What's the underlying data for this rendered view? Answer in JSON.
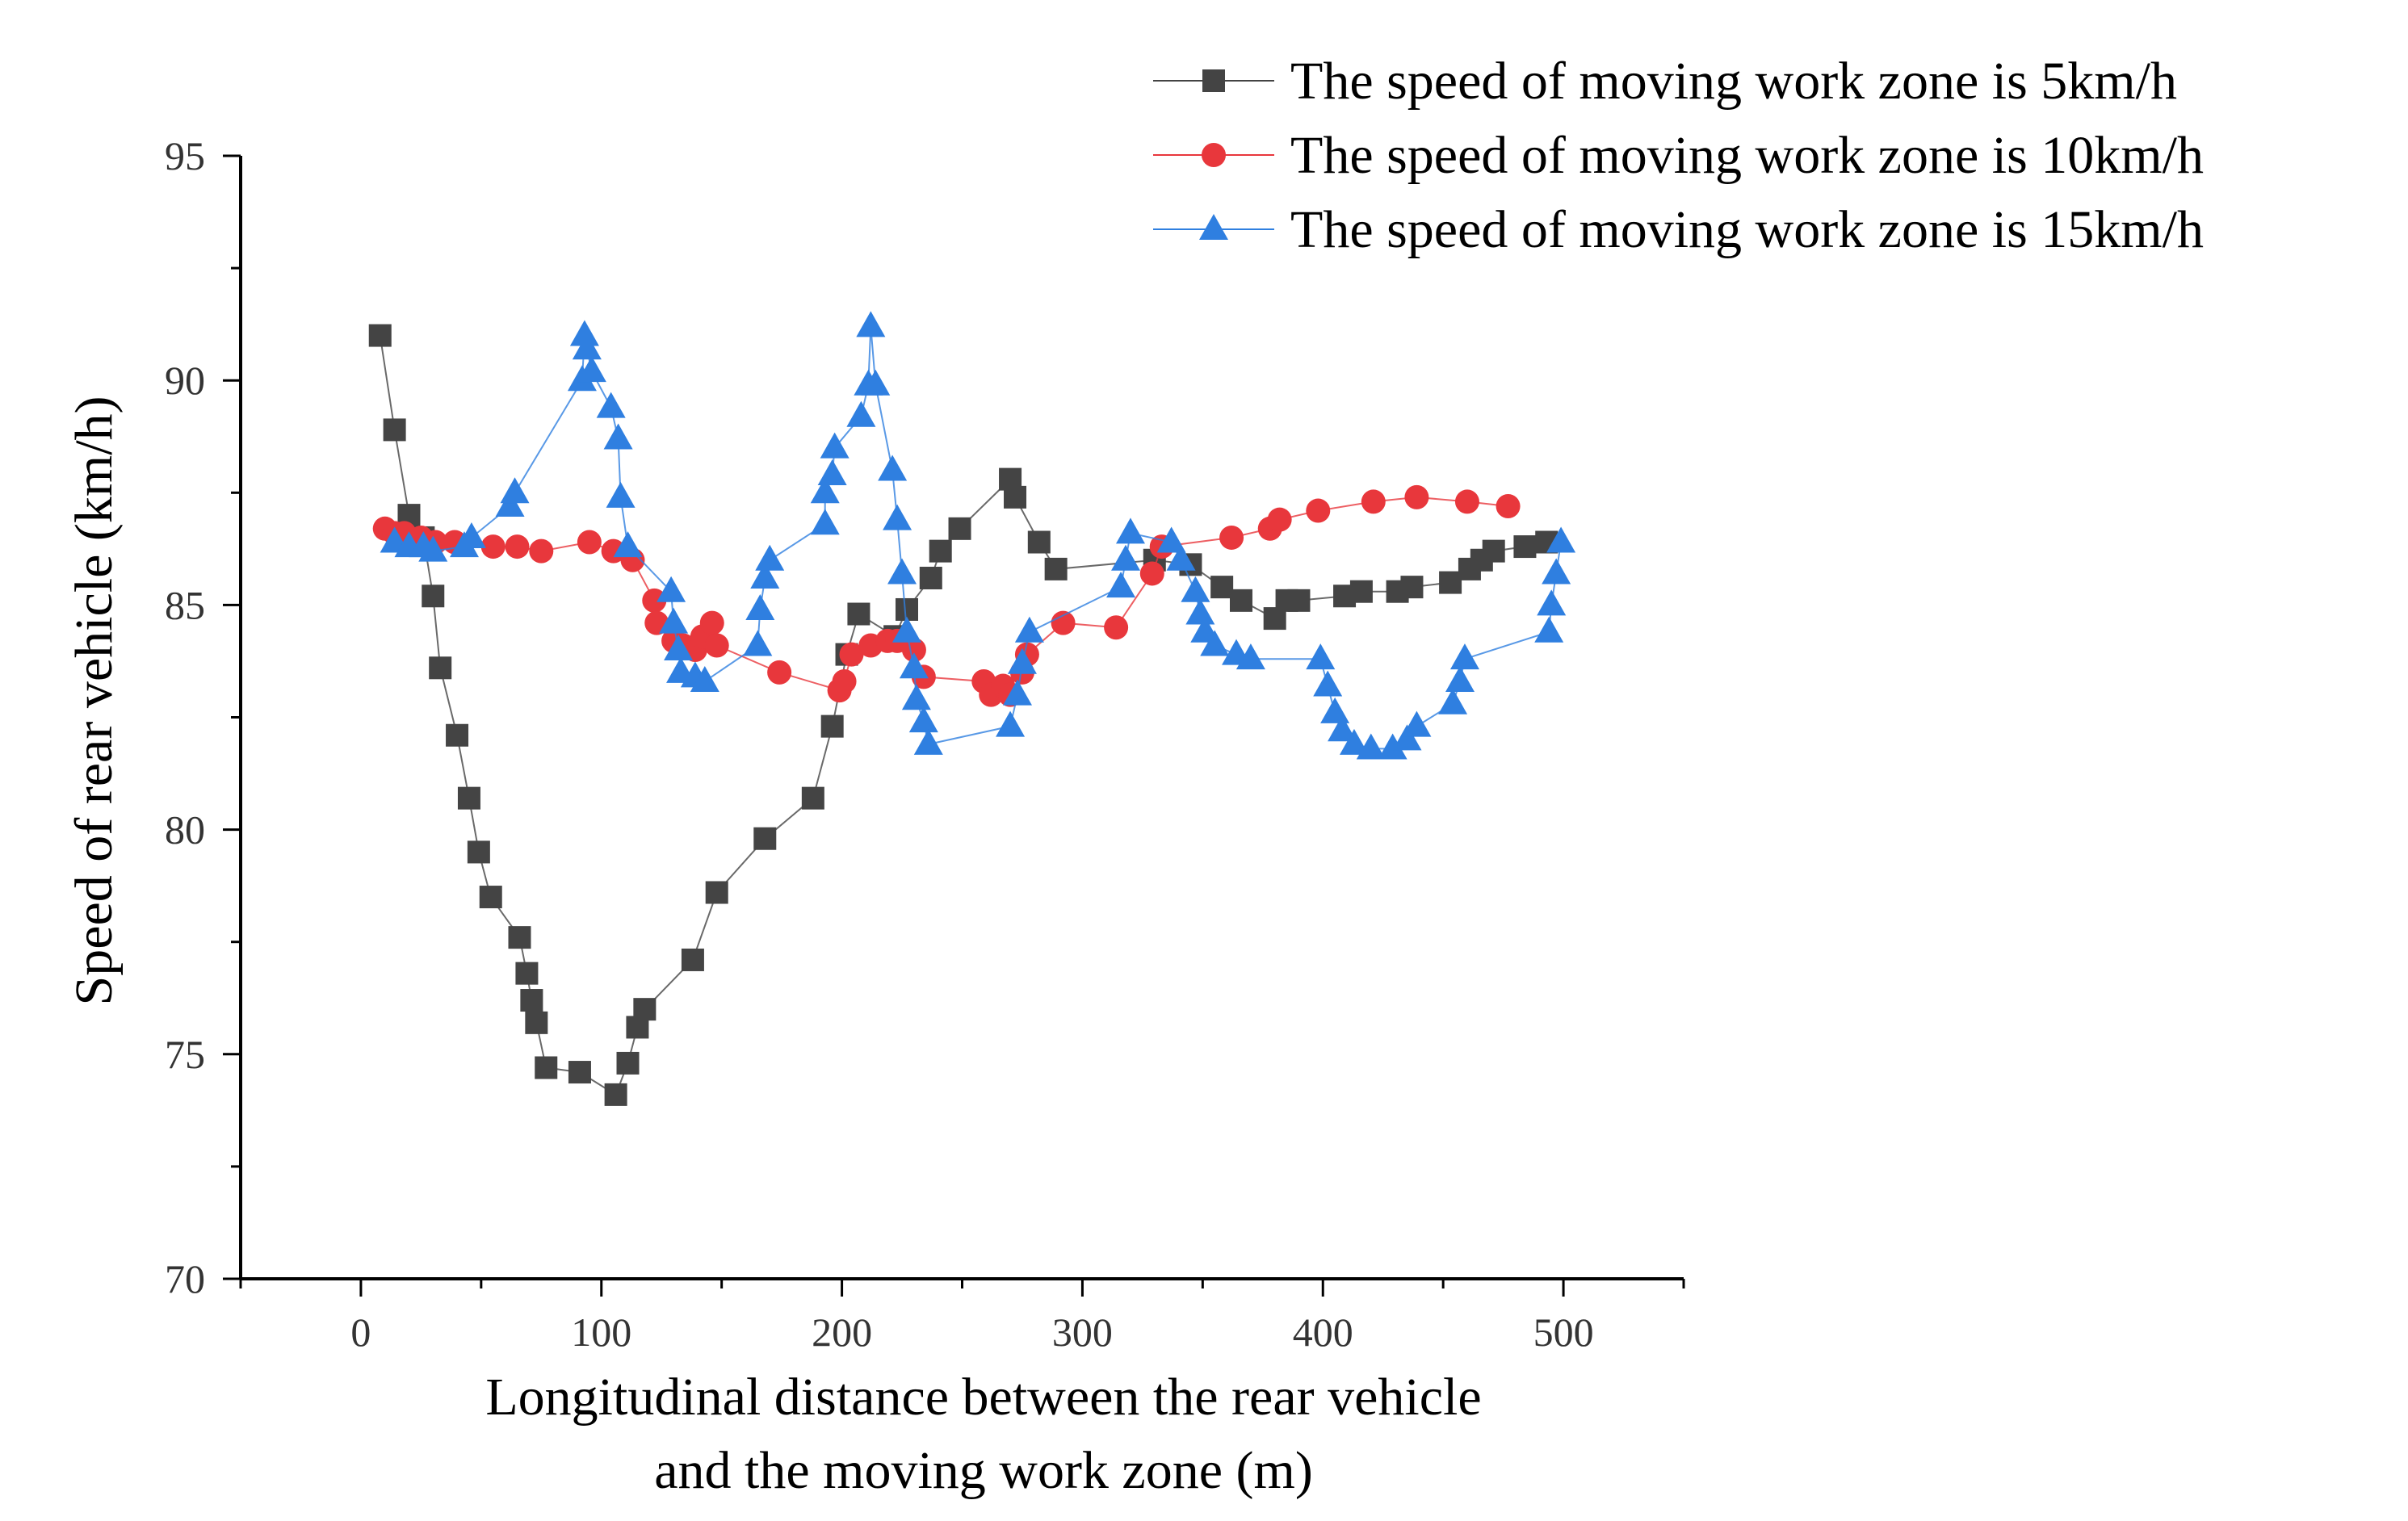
{
  "chart_data": {
    "type": "line",
    "title": "",
    "xlabel_lines": [
      "Longitudinal distance between the rear vehicle",
      "and the moving work zone (m)"
    ],
    "ylabel": "Speed of rear vehicle (km/h)",
    "xlim": [
      -50,
      550
    ],
    "ylim": [
      70,
      95
    ],
    "xticks": [
      0,
      100,
      200,
      300,
      400,
      500
    ],
    "yticks": [
      70,
      75,
      80,
      85,
      90,
      95
    ],
    "legend_position": "top-right",
    "series": [
      {
        "name": "The speed of moving work zone is 5km/h",
        "color": "#444444",
        "marker": "square",
        "points": [
          [
            8,
            91.0
          ],
          [
            14,
            88.9
          ],
          [
            20,
            87.0
          ],
          [
            26,
            86.5
          ],
          [
            30,
            85.2
          ],
          [
            33,
            83.6
          ],
          [
            40,
            82.1
          ],
          [
            45,
            80.7
          ],
          [
            49,
            79.5
          ],
          [
            54,
            78.5
          ],
          [
            66,
            77.6
          ],
          [
            69,
            76.8
          ],
          [
            71,
            76.2
          ],
          [
            73,
            75.7
          ],
          [
            77,
            74.7
          ],
          [
            91,
            74.6
          ],
          [
            106,
            74.1
          ],
          [
            111,
            74.8
          ],
          [
            115,
            75.6
          ],
          [
            118,
            76.0
          ],
          [
            138,
            77.1
          ],
          [
            148,
            78.6
          ],
          [
            168,
            79.8
          ],
          [
            188,
            80.7
          ],
          [
            196,
            82.3
          ],
          [
            202,
            83.9
          ],
          [
            207,
            84.8
          ],
          [
            222,
            84.3
          ],
          [
            227,
            84.9
          ],
          [
            237,
            85.6
          ],
          [
            241,
            86.2
          ],
          [
            249,
            86.7
          ],
          [
            270,
            87.8
          ],
          [
            272,
            87.4
          ],
          [
            282,
            86.4
          ],
          [
            289,
            85.8
          ],
          [
            330,
            86.0
          ],
          [
            345,
            85.9
          ],
          [
            358,
            85.4
          ],
          [
            366,
            85.1
          ],
          [
            380,
            84.7
          ],
          [
            385,
            85.1
          ],
          [
            390,
            85.1
          ],
          [
            409,
            85.2
          ],
          [
            416,
            85.3
          ],
          [
            431,
            85.3
          ],
          [
            437,
            85.4
          ],
          [
            453,
            85.5
          ],
          [
            461,
            85.8
          ],
          [
            466,
            86.0
          ],
          [
            471,
            86.2
          ],
          [
            484,
            86.3
          ],
          [
            493,
            86.4
          ]
        ]
      },
      {
        "name": "The speed of moving work zone is 10km/h",
        "color": "#e8373c",
        "marker": "circle",
        "points": [
          [
            10,
            86.7
          ],
          [
            14,
            86.6
          ],
          [
            18,
            86.6
          ],
          [
            25,
            86.5
          ],
          [
            31,
            86.4
          ],
          [
            39,
            86.4
          ],
          [
            55,
            86.3
          ],
          [
            65,
            86.3
          ],
          [
            75,
            86.2
          ],
          [
            95,
            86.4
          ],
          [
            105,
            86.2
          ],
          [
            113,
            86.0
          ],
          [
            122,
            85.1
          ],
          [
            123,
            84.6
          ],
          [
            130,
            84.2
          ],
          [
            134,
            84.1
          ],
          [
            139,
            84.0
          ],
          [
            142,
            84.3
          ],
          [
            146,
            84.6
          ],
          [
            148,
            84.1
          ],
          [
            174,
            83.5
          ],
          [
            199,
            83.1
          ],
          [
            201,
            83.3
          ],
          [
            204,
            83.9
          ],
          [
            212,
            84.1
          ],
          [
            219,
            84.2
          ],
          [
            223,
            84.2
          ],
          [
            230,
            84.0
          ],
          [
            234,
            83.4
          ],
          [
            259,
            83.3
          ],
          [
            262,
            83.0
          ],
          [
            267,
            83.2
          ],
          [
            270,
            83.0
          ],
          [
            275,
            83.5
          ],
          [
            277,
            83.9
          ],
          [
            292,
            84.6
          ],
          [
            314,
            84.5
          ],
          [
            329,
            85.7
          ],
          [
            333,
            86.3
          ],
          [
            362,
            86.5
          ],
          [
            378,
            86.7
          ],
          [
            382,
            86.9
          ],
          [
            398,
            87.1
          ],
          [
            421,
            87.3
          ],
          [
            439,
            87.4
          ],
          [
            460,
            87.3
          ],
          [
            477,
            87.2
          ]
        ]
      },
      {
        "name": "The speed of moving work zone is 15km/h",
        "color": "#2f7fe0",
        "marker": "triangle",
        "points": [
          [
            14,
            86.4
          ],
          [
            20,
            86.3
          ],
          [
            26,
            86.3
          ],
          [
            30,
            86.2
          ],
          [
            43,
            86.3
          ],
          [
            46,
            86.5
          ],
          [
            62,
            87.2
          ],
          [
            64,
            87.5
          ],
          [
            92,
            90.0
          ],
          [
            93,
            91.0
          ],
          [
            94,
            90.7
          ],
          [
            96,
            90.2
          ],
          [
            104,
            89.4
          ],
          [
            107,
            88.7
          ],
          [
            108,
            87.4
          ],
          [
            111,
            86.3
          ],
          [
            129,
            85.3
          ],
          [
            130,
            84.6
          ],
          [
            132,
            84.0
          ],
          [
            133,
            83.5
          ],
          [
            139,
            83.4
          ],
          [
            143,
            83.3
          ],
          [
            165,
            84.1
          ],
          [
            166,
            84.9
          ],
          [
            168,
            85.6
          ],
          [
            170,
            86.0
          ],
          [
            193,
            86.8
          ],
          [
            193,
            87.5
          ],
          [
            196,
            87.9
          ],
          [
            197,
            88.5
          ],
          [
            208,
            89.2
          ],
          [
            211,
            89.9
          ],
          [
            212,
            91.2
          ],
          [
            214,
            89.9
          ],
          [
            221,
            88.0
          ],
          [
            223,
            86.9
          ],
          [
            225,
            85.7
          ],
          [
            227,
            84.4
          ],
          [
            230,
            83.6
          ],
          [
            231,
            82.9
          ],
          [
            234,
            82.4
          ],
          [
            236,
            81.9
          ],
          [
            270,
            82.3
          ],
          [
            273,
            83.0
          ],
          [
            275,
            83.7
          ],
          [
            278,
            84.4
          ],
          [
            316,
            85.4
          ],
          [
            318,
            86.0
          ],
          [
            320,
            86.6
          ],
          [
            337,
            86.4
          ],
          [
            341,
            86.0
          ],
          [
            347,
            85.3
          ],
          [
            349,
            84.8
          ],
          [
            351,
            84.4
          ],
          [
            355,
            84.1
          ],
          [
            364,
            83.9
          ],
          [
            370,
            83.8
          ],
          [
            399,
            83.8
          ],
          [
            402,
            83.2
          ],
          [
            405,
            82.6
          ],
          [
            408,
            82.2
          ],
          [
            413,
            81.9
          ],
          [
            420,
            81.8
          ],
          [
            429,
            81.8
          ],
          [
            435,
            82.0
          ],
          [
            439,
            82.3
          ],
          [
            454,
            82.8
          ],
          [
            457,
            83.3
          ],
          [
            459,
            83.8
          ],
          [
            494,
            84.4
          ],
          [
            495,
            85.0
          ],
          [
            497,
            85.7
          ],
          [
            499,
            86.4
          ]
        ]
      }
    ]
  }
}
